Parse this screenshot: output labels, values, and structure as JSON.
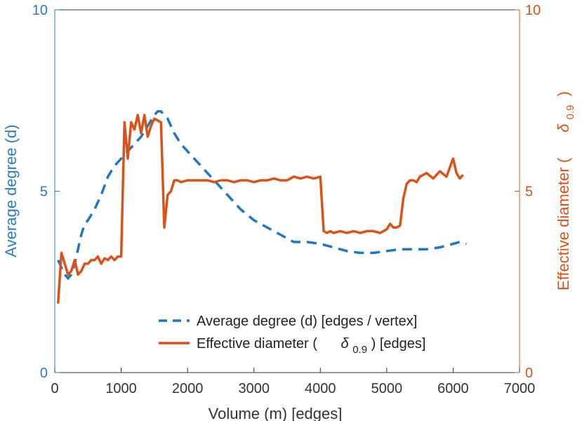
{
  "chart_data": {
    "type": "line",
    "xlabel": "Volume (m) [edges]",
    "ylabel_left": "Average degree (d)",
    "ylabel_right_prefix": "Effective diameter (",
    "ylabel_right_symbol": "δ",
    "ylabel_right_subscript": "0.9",
    "ylabel_right_suffix": ")",
    "xlim": [
      0,
      7000
    ],
    "ylim_left": [
      0,
      10
    ],
    "ylim_right": [
      0,
      10
    ],
    "x_ticks": [
      "0",
      "1000",
      "2000",
      "3000",
      "4000",
      "5000",
      "6000",
      "7000"
    ],
    "y_ticks_left": [
      "0",
      "5",
      "10"
    ],
    "y_ticks_right": [
      "0",
      "5",
      "10"
    ],
    "grid": false,
    "legend_position": "bottom-right",
    "colors": {
      "series1": "#1f77c4",
      "series2": "#d95319",
      "left_axis": "#2b7bbf",
      "right_axis": "#d95319"
    },
    "series": [
      {
        "name": "Average degree (d) [edges / vertex]",
        "axis": "left",
        "style": "dashed",
        "x": [
          50,
          100,
          150,
          200,
          250,
          300,
          350,
          400,
          450,
          500,
          600,
          700,
          800,
          900,
          1000,
          1100,
          1200,
          1300,
          1400,
          1500,
          1550,
          1600,
          1700,
          1800,
          1900,
          2000,
          2100,
          2200,
          2400,
          2600,
          2800,
          3000,
          3200,
          3400,
          3600,
          3800,
          4000,
          4200,
          4400,
          4600,
          4800,
          5000,
          5200,
          5400,
          5600,
          5800,
          6000,
          6100,
          6200
        ],
        "y": [
          3.1,
          2.9,
          2.7,
          2.6,
          2.7,
          3.0,
          3.4,
          3.8,
          4.1,
          4.2,
          4.5,
          4.9,
          5.4,
          5.7,
          5.9,
          6.1,
          6.3,
          6.5,
          6.8,
          7.1,
          7.2,
          7.2,
          7.0,
          6.6,
          6.3,
          6.1,
          5.9,
          5.7,
          5.3,
          4.9,
          4.5,
          4.2,
          4.0,
          3.8,
          3.6,
          3.6,
          3.55,
          3.45,
          3.35,
          3.3,
          3.3,
          3.35,
          3.4,
          3.4,
          3.4,
          3.45,
          3.55,
          3.6,
          3.55
        ]
      },
      {
        "name_prefix": "Effective diameter (",
        "name_symbol": "δ",
        "name_subscript": "0.9",
        "name_suffix": ") [edges]",
        "axis": "right",
        "style": "solid",
        "x": [
          50,
          100,
          150,
          200,
          250,
          300,
          350,
          400,
          450,
          500,
          550,
          600,
          650,
          700,
          750,
          800,
          850,
          900,
          950,
          1000,
          1050,
          1100,
          1150,
          1200,
          1250,
          1300,
          1350,
          1400,
          1450,
          1500,
          1550,
          1600,
          1650,
          1700,
          1750,
          1800,
          1850,
          1900,
          2000,
          2100,
          2200,
          2300,
          2400,
          2500,
          2600,
          2700,
          2800,
          2900,
          3000,
          3100,
          3200,
          3300,
          3400,
          3500,
          3600,
          3700,
          3800,
          3900,
          4000,
          4050,
          4100,
          4150,
          4200,
          4300,
          4400,
          4500,
          4600,
          4700,
          4800,
          4900,
          5000,
          5050,
          5100,
          5150,
          5200,
          5250,
          5300,
          5350,
          5400,
          5450,
          5500,
          5600,
          5700,
          5800,
          5900,
          6000,
          6050,
          6100,
          6150
        ],
        "y": [
          1.9,
          3.3,
          3.0,
          2.7,
          2.8,
          3.1,
          2.7,
          2.8,
          3.0,
          3.0,
          3.1,
          3.1,
          3.2,
          3.0,
          3.15,
          3.1,
          3.2,
          3.1,
          3.2,
          3.2,
          6.9,
          5.9,
          6.9,
          6.7,
          7.1,
          6.6,
          7.1,
          6.5,
          6.8,
          7.0,
          6.95,
          6.9,
          4.0,
          4.9,
          5.0,
          5.3,
          5.3,
          5.25,
          5.3,
          5.3,
          5.3,
          5.3,
          5.25,
          5.3,
          5.3,
          5.25,
          5.3,
          5.3,
          5.25,
          5.3,
          5.3,
          5.35,
          5.3,
          5.3,
          5.4,
          5.35,
          5.4,
          5.35,
          5.4,
          3.9,
          3.85,
          3.9,
          3.85,
          3.9,
          3.85,
          3.9,
          3.85,
          3.9,
          3.9,
          3.85,
          3.95,
          4.1,
          4.0,
          4.0,
          4.05,
          4.8,
          5.2,
          5.3,
          5.3,
          5.25,
          5.4,
          5.5,
          5.35,
          5.55,
          5.4,
          5.9,
          5.5,
          5.35,
          5.45
        ]
      }
    ]
  }
}
